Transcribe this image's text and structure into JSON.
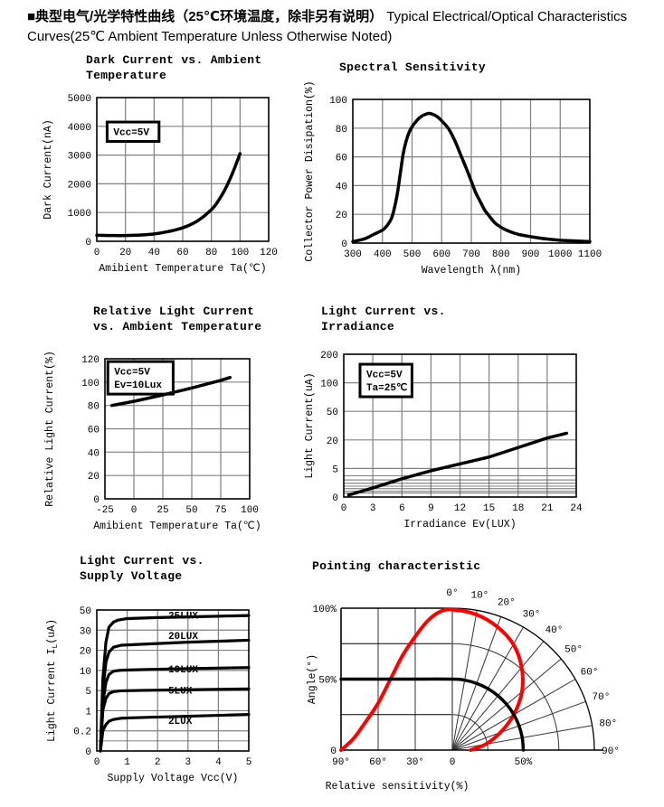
{
  "page": {
    "header_zh": "■典型电气/光学特性曲线（25℃环境温度，除非另有说明）",
    "header_en": "Typical Electrical/Optical Characteristics Curves(25℃ Ambient Temperature Unless Otherwise Noted)"
  },
  "chart_data": [
    {
      "type": "line",
      "title_lines": [
        "Dark Current vs. Ambient",
        "Temperature"
      ],
      "xlabel": "Amibient Temperature Ta(℃)",
      "ylabel": "Dark Current(nA)",
      "xticks": [
        0,
        20,
        40,
        60,
        80,
        100,
        120
      ],
      "yticks": [
        0,
        1000,
        2000,
        3000,
        4000,
        5000
      ],
      "xlim": [
        0,
        120
      ],
      "ylim": [
        0,
        5000
      ],
      "grid": true,
      "annotation": {
        "lines": [
          "Vcc=5V"
        ],
        "fx": 0.06,
        "fy": 0.17
      },
      "series": [
        {
          "name": "dark-current",
          "color": "#000000",
          "width": 3.5,
          "smooth": true,
          "points": [
            [
              0,
              210
            ],
            [
              10,
              200
            ],
            [
              20,
              200
            ],
            [
              30,
              215
            ],
            [
              40,
              255
            ],
            [
              50,
              340
            ],
            [
              60,
              470
            ],
            [
              70,
              700
            ],
            [
              80,
              1100
            ],
            [
              85,
              1420
            ],
            [
              90,
              1850
            ],
            [
              95,
              2400
            ],
            [
              100,
              3050
            ]
          ]
        }
      ]
    },
    {
      "type": "line",
      "title_lines": [
        "Spectral Sensitivity"
      ],
      "xlabel": "Wavelength λ(nm)",
      "ylabel": "Collector Power Disipation(%)",
      "xticks": [
        300,
        400,
        500,
        600,
        700,
        800,
        900,
        1000,
        1100
      ],
      "yticks": [
        0,
        20,
        40,
        60,
        80,
        100
      ],
      "xlim": [
        300,
        1100
      ],
      "ylim": [
        0,
        100
      ],
      "grid": true,
      "series": [
        {
          "name": "spectral-sensitivity",
          "color": "#000000",
          "width": 3.5,
          "smooth": true,
          "points": [
            [
              300,
              1
            ],
            [
              340,
              3
            ],
            [
              370,
              6
            ],
            [
              400,
              9
            ],
            [
              415,
              12
            ],
            [
              430,
              17
            ],
            [
              440,
              24
            ],
            [
              450,
              34
            ],
            [
              460,
              48
            ],
            [
              470,
              62
            ],
            [
              480,
              71
            ],
            [
              490,
              77
            ],
            [
              500,
              81
            ],
            [
              515,
              85
            ],
            [
              530,
              88
            ],
            [
              550,
              90
            ],
            [
              565,
              90
            ],
            [
              585,
              88
            ],
            [
              605,
              84
            ],
            [
              625,
              79
            ],
            [
              645,
              71
            ],
            [
              665,
              61
            ],
            [
              685,
              51
            ],
            [
              700,
              43
            ],
            [
              715,
              35
            ],
            [
              730,
              29
            ],
            [
              745,
              23
            ],
            [
              760,
              19
            ],
            [
              780,
              14
            ],
            [
              800,
              11
            ],
            [
              830,
              8
            ],
            [
              860,
              6
            ],
            [
              900,
              4.5
            ],
            [
              950,
              3
            ],
            [
              1000,
              2
            ],
            [
              1050,
              1.5
            ],
            [
              1100,
              1
            ]
          ]
        }
      ]
    },
    {
      "type": "line",
      "title_lines": [
        "Relative Light Current",
        "vs. Ambient Temperature"
      ],
      "xlabel": "Amibient Temperature Ta(℃)",
      "ylabel": "Relative Light Current(%)",
      "xticks": [
        -25,
        0,
        25,
        50,
        75,
        100
      ],
      "yticks": [
        0,
        20,
        40,
        60,
        80,
        100,
        120
      ],
      "xlim": [
        -25,
        100
      ],
      "ylim": [
        0,
        120
      ],
      "grid": true,
      "annotation": {
        "lines": [
          "Vcc=5V",
          "Ev=10Lux"
        ],
        "fx": 0.02,
        "fy": 0.02
      },
      "series": [
        {
          "name": "relative-light-current",
          "color": "#000000",
          "width": 3.5,
          "smooth": false,
          "points": [
            [
              -19,
              80
            ],
            [
              0,
              83.5
            ],
            [
              25,
              89
            ],
            [
              50,
              95
            ],
            [
              75,
              101.5
            ],
            [
              83,
              104
            ]
          ]
        }
      ]
    },
    {
      "type": "line",
      "title_lines": [
        "Light Current vs.",
        "Irradiance"
      ],
      "xlabel": "Irradiance Ev(LUX)",
      "ylabel": "Light Current(uA)",
      "xticks": [
        0,
        3,
        6,
        9,
        12,
        15,
        18,
        21,
        24
      ],
      "yticks": [
        0,
        5,
        20,
        50,
        100,
        200
      ],
      "minor_y": [
        0.7,
        1.05,
        1.45,
        1.9,
        2.4,
        3.0,
        3.7
      ],
      "xlim": [
        0,
        24
      ],
      "ylim": [
        0,
        200
      ],
      "grid": true,
      "annotation": {
        "lines": [
          "Vcc=5V",
          "Ta=25℃"
        ],
        "fx": 0.07,
        "fy": 0.07
      },
      "series": [
        {
          "name": "light-current-vs-irradiance",
          "color": "#000000",
          "width": 3.5,
          "smooth": false,
          "points": [
            [
              0.5,
              0.35
            ],
            [
              3,
              1.6
            ],
            [
              6,
              3.2
            ],
            [
              9,
              4.6
            ],
            [
              12,
              7.4
            ],
            [
              15,
              11
            ],
            [
              18,
              16
            ],
            [
              21,
              22
            ],
            [
              23,
              27
            ]
          ]
        }
      ]
    },
    {
      "type": "line",
      "title_lines": [
        "Light Current vs.",
        "Supply Voltage"
      ],
      "xlabel": "Supply Voltage Vcc(V)",
      "ylabel_parts": [
        "Light Current I",
        "L",
        "(uA)"
      ],
      "xticks": [
        0,
        1,
        2,
        3,
        4,
        5
      ],
      "yticks": [
        0,
        0.2,
        1,
        5,
        10,
        20,
        30,
        50
      ],
      "minor_y": [
        0.1
      ],
      "xlim": [
        0,
        5
      ],
      "ylim": [
        0,
        50
      ],
      "grid": true,
      "series": [
        {
          "name": "curve-25lux",
          "color": "#000000",
          "width": 3.2,
          "smooth": false,
          "points": [
            [
              0.12,
              0
            ],
            [
              0.2,
              8
            ],
            [
              0.3,
              24
            ],
            [
              0.4,
              33
            ],
            [
              0.55,
              38
            ],
            [
              0.7,
              40
            ],
            [
              1,
              41.5
            ],
            [
              2,
              42.5
            ],
            [
              3.5,
              43.5
            ],
            [
              5,
              44.5
            ]
          ]
        },
        {
          "name": "curve-20lux",
          "color": "#000000",
          "width": 3.2,
          "smooth": false,
          "points": [
            [
              0.12,
              0
            ],
            [
              0.2,
              5
            ],
            [
              0.3,
              14
            ],
            [
              0.4,
              19
            ],
            [
              0.55,
              21.5
            ],
            [
              0.8,
              22.5
            ],
            [
              1.5,
              23
            ],
            [
              3,
              24
            ],
            [
              5,
              25
            ]
          ]
        },
        {
          "name": "curve-10lux",
          "color": "#000000",
          "width": 3.2,
          "smooth": false,
          "points": [
            [
              0.12,
              0
            ],
            [
              0.2,
              2.5
            ],
            [
              0.3,
              7
            ],
            [
              0.4,
              9
            ],
            [
              0.55,
              9.8
            ],
            [
              0.8,
              10.1
            ],
            [
              1.5,
              10.4
            ],
            [
              3,
              10.9
            ],
            [
              5,
              11.4
            ]
          ]
        },
        {
          "name": "curve-5lux",
          "color": "#000000",
          "width": 3.2,
          "smooth": false,
          "points": [
            [
              0.12,
              0
            ],
            [
              0.2,
              1.2
            ],
            [
              0.3,
              3.4
            ],
            [
              0.4,
              4.4
            ],
            [
              0.55,
              4.8
            ],
            [
              0.8,
              4.95
            ],
            [
              1.5,
              5.05
            ],
            [
              3,
              5.2
            ],
            [
              5,
              5.4
            ]
          ]
        },
        {
          "name": "curve-2lux",
          "color": "#000000",
          "width": 3.2,
          "smooth": false,
          "points": [
            [
              0.12,
              0
            ],
            [
              0.2,
              0.2
            ],
            [
              0.3,
              0.45
            ],
            [
              0.4,
              0.58
            ],
            [
              0.55,
              0.65
            ],
            [
              0.8,
              0.7
            ],
            [
              1.5,
              0.73
            ],
            [
              3,
              0.78
            ],
            [
              5,
              0.85
            ]
          ]
        }
      ],
      "curve_labels": [
        {
          "text": "25LUX",
          "x": 2.35,
          "y": 45,
          "color": "#ff0000"
        },
        {
          "text": "20LUX",
          "x": 2.35,
          "y": 27.5,
          "color": "#ff0000"
        },
        {
          "text": "10LUX",
          "x": 2.35,
          "y": 10.8,
          "color": "#ff0000"
        },
        {
          "text": "5LUX",
          "x": 2.35,
          "y": 5.2,
          "color": "#ff0000"
        },
        {
          "text": "2LUX",
          "x": 2.35,
          "y": 0.62,
          "color": "#ff0000"
        }
      ]
    },
    {
      "type": "polar",
      "title_lines": [
        "Pointing characteristic"
      ],
      "xlabel": "Relative sensitivity(%)",
      "ylabel": "Angle(°)",
      "y_tick_labels": [
        "100%",
        "50%",
        "0"
      ],
      "x_tick_labels": [
        "90°",
        "60°",
        "30°",
        "0"
      ],
      "sensitivity_label": "50%",
      "angle_labels": [
        "0°",
        "10°",
        "20°",
        "30°",
        "40°",
        "50°",
        "60°",
        "70°",
        "80°",
        "90°"
      ],
      "series": [
        {
          "name": "relative-sensitivity-curve",
          "color": "#ff0000",
          "width": 4,
          "smooth": true,
          "cartesian": [
            [
              90,
              0
            ],
            [
              80,
              8
            ],
            [
              70,
              20
            ],
            [
              60,
              33
            ],
            [
              50,
              50
            ],
            [
              40,
              67
            ],
            [
              30,
              80
            ],
            [
              20,
              91
            ],
            [
              10,
              97.5
            ],
            [
              0,
              99
            ]
          ],
          "polar": [
            [
              0,
              99
            ],
            [
              10,
              97
            ],
            [
              20,
              92.5
            ],
            [
              30,
              86
            ],
            [
              40,
              76
            ],
            [
              50,
              64
            ],
            [
              60,
              50
            ],
            [
              70,
              36
            ],
            [
              80,
              24
            ],
            [
              90,
              13
            ]
          ]
        },
        {
          "name": "half-sensitivity-curve",
          "color": "#000000",
          "width": 3.5,
          "smooth": true,
          "cartesian": [
            [
              90,
              50
            ],
            [
              45,
              50
            ],
            [
              0,
              50
            ]
          ],
          "polar": [
            [
              0,
              50
            ],
            [
              10,
              50
            ],
            [
              20,
              50
            ],
            [
              30,
              50
            ],
            [
              40,
              50
            ],
            [
              50,
              50
            ],
            [
              60,
              50
            ],
            [
              70,
              50
            ],
            [
              80,
              50
            ],
            [
              90,
              50
            ]
          ]
        }
      ]
    }
  ]
}
